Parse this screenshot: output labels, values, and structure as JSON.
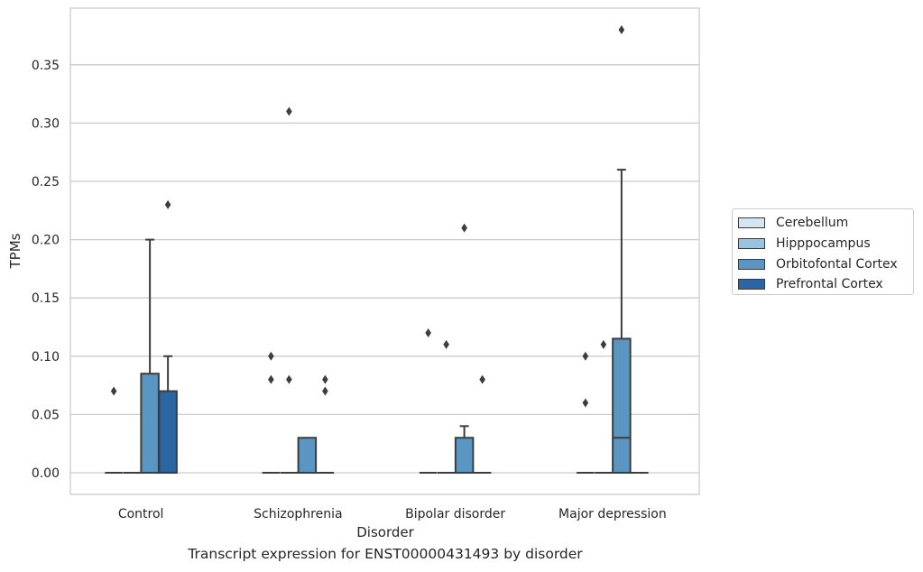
{
  "chart_data": {
    "type": "boxplot",
    "title": "",
    "caption": "Transcript expression for ENST00000431493 by disorder",
    "xlabel": "Disorder",
    "ylabel": "TPMs",
    "ylim": [
      -0.018,
      0.397
    ],
    "yticks": [
      "0.00",
      "0.05",
      "0.10",
      "0.15",
      "0.20",
      "0.25",
      "0.30",
      "0.35"
    ],
    "ytick_values": [
      0,
      0.05,
      0.1,
      0.15,
      0.2,
      0.25,
      0.3,
      0.35
    ],
    "grid": true,
    "legend_position": "right",
    "categories": [
      "Control",
      "Schizophrenia",
      "Bipolar disorder",
      "Major depression"
    ],
    "series": [
      {
        "name": "Cerebellum",
        "color": "#d6e5f2",
        "boxes": [
          {
            "q1": 0,
            "median": 0,
            "q3": 0,
            "whisker_low": 0,
            "whisker_high": 0,
            "outliers": [
              0.07
            ]
          },
          {
            "q1": 0,
            "median": 0,
            "q3": 0,
            "whisker_low": 0,
            "whisker_high": 0,
            "outliers": [
              0.08,
              0.1
            ]
          },
          {
            "q1": 0,
            "median": 0,
            "q3": 0,
            "whisker_low": 0,
            "whisker_high": 0,
            "outliers": [
              0.12
            ]
          },
          {
            "q1": 0,
            "median": 0,
            "q3": 0,
            "whisker_low": 0,
            "whisker_high": 0,
            "outliers": [
              0.06,
              0.1
            ]
          }
        ]
      },
      {
        "name": "Hipppocampus",
        "color": "#99c3de",
        "boxes": [
          {
            "q1": 0,
            "median": 0,
            "q3": 0,
            "whisker_low": 0,
            "whisker_high": 0,
            "outliers": []
          },
          {
            "q1": 0,
            "median": 0,
            "q3": 0,
            "whisker_low": 0,
            "whisker_high": 0,
            "outliers": [
              0.08,
              0.31
            ]
          },
          {
            "q1": 0,
            "median": 0,
            "q3": 0,
            "whisker_low": 0,
            "whisker_high": 0,
            "outliers": [
              0.11
            ]
          },
          {
            "q1": 0,
            "median": 0,
            "q3": 0,
            "whisker_low": 0,
            "whisker_high": 0,
            "outliers": [
              0.11
            ]
          }
        ]
      },
      {
        "name": "Orbitofontal Cortex",
        "color": "#5b95c2",
        "boxes": [
          {
            "q1": 0,
            "median": 0,
            "q3": 0.085,
            "whisker_low": 0,
            "whisker_high": 0.2,
            "outliers": []
          },
          {
            "q1": 0,
            "median": 0,
            "q3": 0.03,
            "whisker_low": 0,
            "whisker_high": 0.03,
            "outliers": []
          },
          {
            "q1": 0,
            "median": 0,
            "q3": 0.03,
            "whisker_low": 0,
            "whisker_high": 0.04,
            "outliers": [
              0.21
            ]
          },
          {
            "q1": 0,
            "median": 0.03,
            "q3": 0.115,
            "whisker_low": 0,
            "whisker_high": 0.26,
            "outliers": [
              0.38
            ]
          }
        ]
      },
      {
        "name": "Prefrontal Cortex",
        "color": "#2b66a3",
        "boxes": [
          {
            "q1": 0,
            "median": 0,
            "q3": 0.07,
            "whisker_low": 0,
            "whisker_high": 0.1,
            "outliers": [
              0.23
            ]
          },
          {
            "q1": 0,
            "median": 0,
            "q3": 0,
            "whisker_low": 0,
            "whisker_high": 0,
            "outliers": [
              0.07,
              0.08
            ]
          },
          {
            "q1": 0,
            "median": 0,
            "q3": 0,
            "whisker_low": 0,
            "whisker_high": 0,
            "outliers": [
              0.08
            ]
          },
          {
            "q1": 0,
            "median": 0,
            "q3": 0,
            "whisker_low": 0,
            "whisker_high": 0,
            "outliers": []
          }
        ]
      }
    ]
  }
}
